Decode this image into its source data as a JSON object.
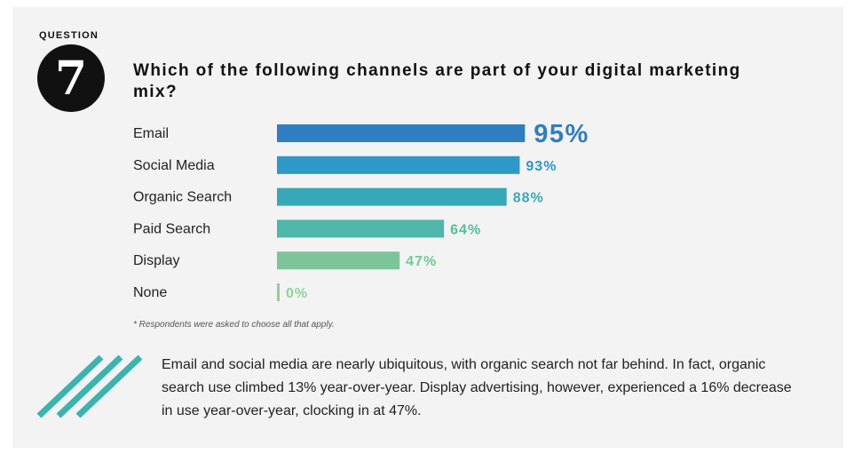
{
  "header": {
    "question_label": "QUESTION",
    "question_number": "7",
    "title": "Which of the following channels are part of your digital marketing mix?"
  },
  "chart_data": {
    "type": "bar",
    "orientation": "horizontal",
    "title": "Which of the following channels are part of your digital marketing mix?",
    "categories": [
      "Email",
      "Social Media",
      "Organic Search",
      "Paid Search",
      "Display",
      "None"
    ],
    "values": [
      95,
      93,
      88,
      64,
      47,
      0
    ],
    "value_labels": [
      "95%",
      "93%",
      "88%",
      "64%",
      "47%",
      "0%"
    ],
    "colors": [
      "#2f7ec2",
      "#2e98c7",
      "#36a9b8",
      "#4fb7aa",
      "#7dc598",
      "#93d08f"
    ],
    "label_colors": [
      "#2f7ec2",
      "#2e98c7",
      "#36a9b8",
      "#4fbf9a",
      "#6fcb95",
      "#8fd59c"
    ],
    "xlim": [
      0,
      100
    ],
    "xlabel": "",
    "ylabel": "",
    "grid": false
  },
  "footnote": "* Respondents were asked to choose all that apply.",
  "summary": "Email and social media are nearly ubiquitous, with organic search not far behind. In fact, organic search use climbed 13% year-over-year. Display advertising, however, experienced a 16% decrease in use year-over-year, clocking in at 47%.",
  "decoration": {
    "stripe_color": "#3bb3ae"
  }
}
